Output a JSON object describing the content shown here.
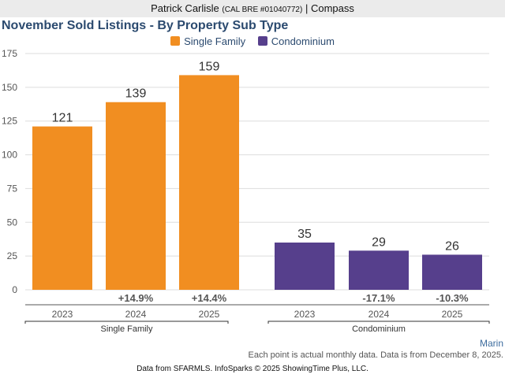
{
  "header": {
    "agent_name": "Patrick Carlisle",
    "license": "(CAL BRE #01040772)",
    "separator": "|",
    "brokerage": "Compass"
  },
  "region": "Marin",
  "note": "Each point is actual monthly data. Data is from December 8, 2025.",
  "footer": "Data from SFARMLS. InfoSparks © 2025 ShowingTime Plus, LLC.",
  "colors": {
    "single_family": "#f18e21",
    "condominium": "#563f8c",
    "title": "#2b4a6f"
  },
  "chart_data": {
    "type": "bar",
    "title": "November Sold Listings - By Property Sub Type",
    "xlabel": "",
    "ylabel": "",
    "ylim": [
      0,
      175
    ],
    "yticks": [
      0,
      25,
      50,
      75,
      100,
      125,
      150,
      175
    ],
    "grid": true,
    "legend_position": "top-center",
    "categories": [
      "2023",
      "2024",
      "2025"
    ],
    "series": [
      {
        "name": "Single Family",
        "group_label": "Single Family",
        "values": [
          121,
          139,
          159
        ],
        "changes": [
          "",
          "+14.9%",
          "+14.4%"
        ]
      },
      {
        "name": "Condominium",
        "group_label": "Condominium",
        "values": [
          35,
          29,
          26
        ],
        "changes": [
          "",
          "-17.1%",
          "-10.3%"
        ]
      }
    ]
  }
}
